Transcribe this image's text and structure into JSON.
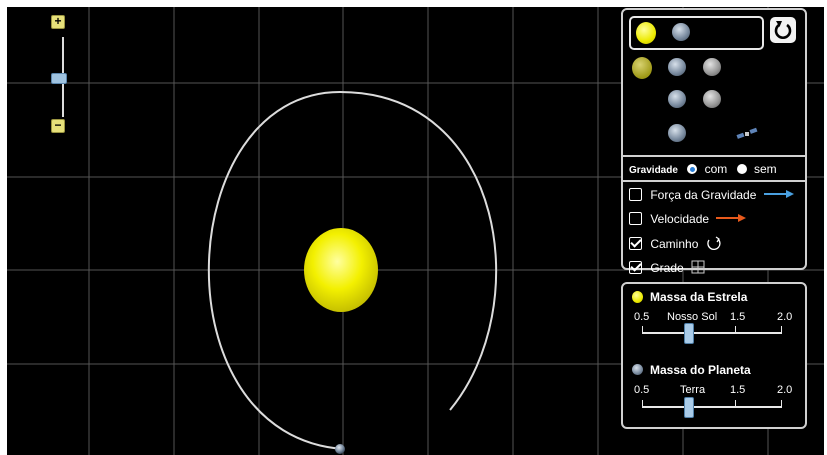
{
  "zoom": {
    "plus_label": "+",
    "minus_label": "−"
  },
  "bodies": {
    "selected": [
      "sun-icon",
      "planet-icon"
    ],
    "options": [
      [
        "sun-icon",
        "planet-icon",
        "moon-icon"
      ],
      [
        "planet-icon",
        "moon-icon"
      ],
      [
        "planet-icon",
        "satellite-icon"
      ]
    ],
    "reset_icon": "reset-icon"
  },
  "gravity": {
    "label": "Gravidade",
    "on_label": "com",
    "off_label": "sem",
    "selected": "com"
  },
  "options": [
    {
      "label": "Força da Gravidade",
      "checked": false,
      "icon": "blue-arrow-icon",
      "color": "#4aa0e0"
    },
    {
      "label": "Velocidade",
      "checked": false,
      "icon": "red-arrow-icon",
      "color": "#e85a1c"
    },
    {
      "label": "Caminho",
      "checked": true,
      "icon": "path-icon"
    },
    {
      "label": "Grade",
      "checked": true,
      "icon": "grid-icon"
    }
  ],
  "star_mass": {
    "title": "Massa da Estrela",
    "ticks": [
      "0.5",
      "Nosso Sol",
      "1.5",
      "2.0"
    ],
    "value": 1.0
  },
  "planet_mass": {
    "title": "Massa do Planeta",
    "ticks": [
      "0.5",
      "Terra",
      "1.5",
      "2.0"
    ],
    "value": 1.0
  },
  "colors": {
    "star": "#f0ee10",
    "orbit": "#dcdcdc",
    "grid": "#555555",
    "background": "#000000"
  }
}
